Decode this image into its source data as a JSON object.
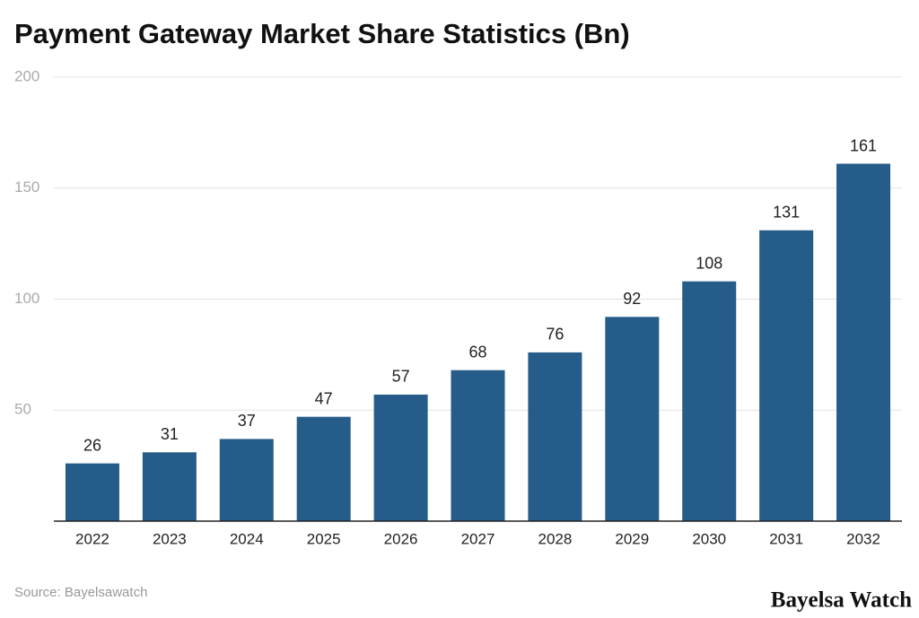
{
  "chart_data": {
    "type": "bar",
    "title": "Payment Gateway Market Share Statistics (Bn)",
    "categories": [
      "2022",
      "2023",
      "2024",
      "2025",
      "2026",
      "2027",
      "2028",
      "2029",
      "2030",
      "2031",
      "2032"
    ],
    "values": [
      26,
      31,
      37,
      47,
      57,
      68,
      76,
      92,
      108,
      131,
      161
    ],
    "color": "#265c8a",
    "ylim": [
      0,
      200
    ],
    "yticks": [
      50,
      100,
      150,
      200
    ],
    "grid": true,
    "source": "Source: Bayelsawatch",
    "logo": "Bayelsa Watch"
  }
}
